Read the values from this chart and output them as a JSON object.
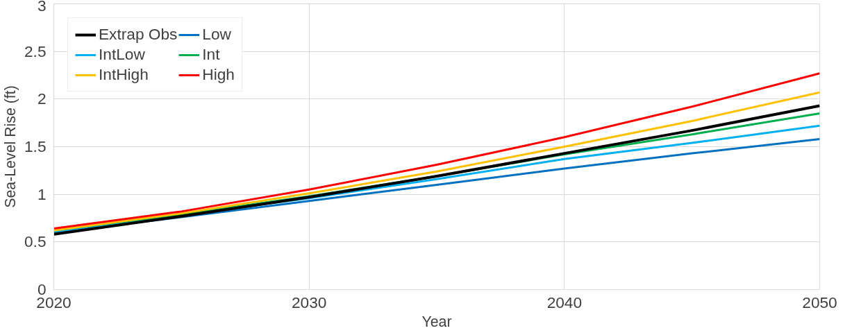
{
  "chart_data": {
    "type": "line",
    "xlabel": "Year",
    "ylabel": "Sea-Level Rise (ft)",
    "x": [
      2020,
      2025,
      2030,
      2035,
      2040,
      2045,
      2050
    ],
    "series": [
      {
        "name": "Extrap Obs",
        "color": "#000000",
        "values": [
          0.58,
          0.77,
          0.97,
          1.19,
          1.43,
          1.67,
          1.93
        ]
      },
      {
        "name": "Low",
        "color": "#0070c0",
        "values": [
          0.6,
          0.76,
          0.93,
          1.1,
          1.27,
          1.43,
          1.58
        ]
      },
      {
        "name": "IntLow",
        "color": "#00b0f0",
        "values": [
          0.61,
          0.78,
          0.96,
          1.16,
          1.37,
          1.54,
          1.72
        ]
      },
      {
        "name": "Int",
        "color": "#00b050",
        "values": [
          0.62,
          0.79,
          0.98,
          1.19,
          1.42,
          1.63,
          1.85
        ]
      },
      {
        "name": "IntHigh",
        "color": "#ffc000",
        "values": [
          0.62,
          0.8,
          1.01,
          1.24,
          1.5,
          1.77,
          2.07
        ]
      },
      {
        "name": "High",
        "color": "#ff0000",
        "values": [
          0.64,
          0.82,
          1.05,
          1.31,
          1.6,
          1.92,
          2.27
        ]
      }
    ],
    "xlim": [
      2020,
      2050
    ],
    "xticks": [
      2020,
      2030,
      2040,
      2050
    ],
    "ylim": [
      0,
      3
    ],
    "yticks": [
      0,
      0.5,
      1,
      1.5,
      2,
      2.5,
      3
    ],
    "grid": true,
    "legend": "top left",
    "line_style": "solid"
  }
}
